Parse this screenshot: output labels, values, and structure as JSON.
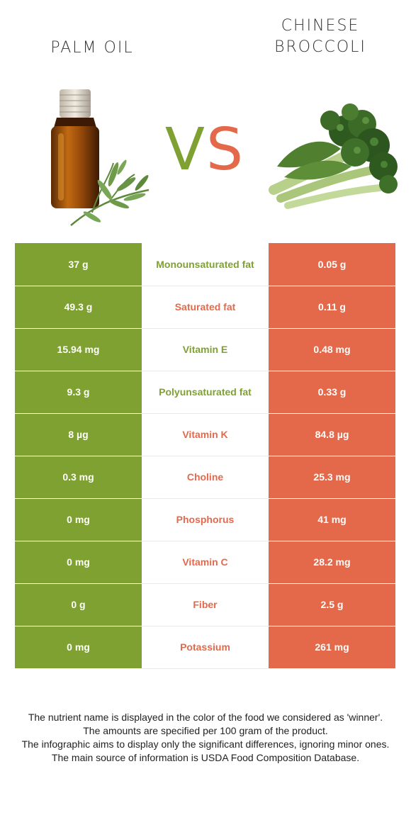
{
  "header": {
    "left_food": "PALM OIL",
    "right_food_line1": "CHINESE",
    "right_food_line2": "BROCCOLI",
    "vs_v": "V",
    "vs_s": "S"
  },
  "colors": {
    "left": "#7ea132",
    "right": "#e4694b"
  },
  "icons": {
    "left": "palm-oil-bottle-icon",
    "right": "chinese-broccoli-icon"
  },
  "rows": [
    {
      "left": "37 g",
      "nutrient": "Monounsaturated fat",
      "right": "0.05 g",
      "winner": "left"
    },
    {
      "left": "49.3 g",
      "nutrient": "Saturated fat",
      "right": "0.11 g",
      "winner": "right"
    },
    {
      "left": "15.94 mg",
      "nutrient": "Vitamin E",
      "right": "0.48 mg",
      "winner": "left"
    },
    {
      "left": "9.3 g",
      "nutrient": "Polyunsaturated fat",
      "right": "0.33 g",
      "winner": "left"
    },
    {
      "left": "8 µg",
      "nutrient": "Vitamin K",
      "right": "84.8 µg",
      "winner": "right"
    },
    {
      "left": "0.3 mg",
      "nutrient": "Choline",
      "right": "25.3 mg",
      "winner": "right"
    },
    {
      "left": "0 mg",
      "nutrient": "Phosphorus",
      "right": "41 mg",
      "winner": "right"
    },
    {
      "left": "0 mg",
      "nutrient": "Vitamin C",
      "right": "28.2 mg",
      "winner": "right"
    },
    {
      "left": "0 g",
      "nutrient": "Fiber",
      "right": "2.5 g",
      "winner": "right"
    },
    {
      "left": "0 mg",
      "nutrient": "Potassium",
      "right": "261 mg",
      "winner": "right"
    }
  ],
  "notes": {
    "line1": "The nutrient name is displayed in the color of the food we considered as 'winner'.",
    "line2": "The amounts are specified per 100 gram of the product.",
    "line3": "The infographic aims to display only the significant differences, ignoring minor ones.",
    "line4": "The main source of information is USDA Food Composition Database."
  }
}
